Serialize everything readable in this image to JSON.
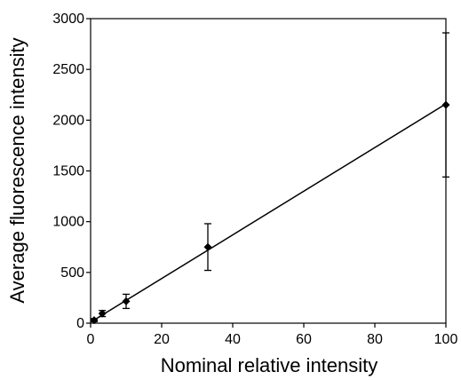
{
  "chart_data": {
    "type": "scatter",
    "title": "",
    "xlabel": "Nominal relative intensity",
    "ylabel": "Average fluorescence intensity",
    "xlim": [
      0,
      100
    ],
    "ylim": [
      0,
      3000
    ],
    "xticks": [
      0,
      20,
      40,
      60,
      80,
      100
    ],
    "yticks": [
      0,
      500,
      1000,
      1500,
      2000,
      2500,
      3000
    ],
    "xtick_labels": [
      "0",
      "20",
      "40",
      "60",
      "80",
      "100"
    ],
    "ytick_labels": [
      "0",
      "500",
      "1000",
      "1500",
      "2000",
      "2500",
      "3000"
    ],
    "grid": false,
    "legend": "none",
    "series": [
      {
        "marker": "diamond",
        "points": [
          {
            "x": 1,
            "y": 30,
            "err": 15
          },
          {
            "x": 3.3,
            "y": 95,
            "err": 30
          },
          {
            "x": 10,
            "y": 215,
            "err": 70
          },
          {
            "x": 33,
            "y": 750,
            "err": 230
          },
          {
            "x": 100,
            "y": 2150,
            "err": 710
          }
        ]
      }
    ],
    "trendline": {
      "type": "linear",
      "x": [
        0,
        100
      ],
      "y": [
        10,
        2160
      ]
    }
  }
}
